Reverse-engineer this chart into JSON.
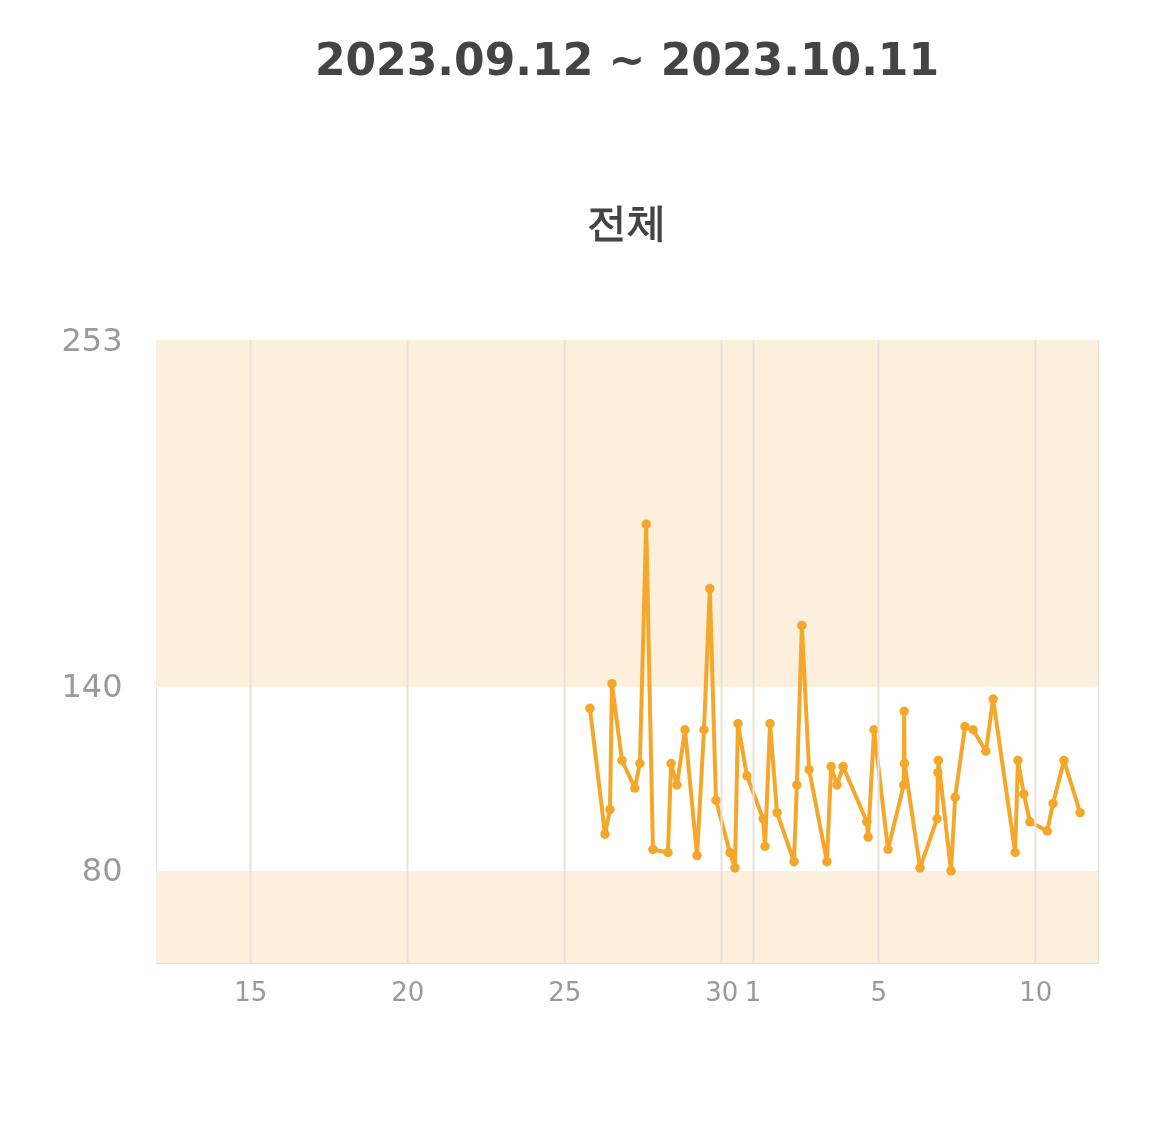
{
  "chart_data": {
    "type": "line",
    "title": "2023.09.12 ~ 2023.10.11",
    "subtitle": "전체",
    "x": [
      "2023-09-25T19:40",
      "2023-09-26T07:10",
      "2023-09-26T11:00",
      "2023-09-26T12:30",
      "2023-09-26T20:10",
      "2023-09-27T06:00",
      "2023-09-27T09:50",
      "2023-09-27T14:40",
      "2023-09-27T19:50",
      "2023-09-28T07:20",
      "2023-09-28T09:40",
      "2023-09-28T14:10",
      "2023-09-28T20:20",
      "2023-09-29T05:30",
      "2023-09-29T10:50",
      "2023-09-29T15:20",
      "2023-09-29T20:00",
      "2023-09-30T06:40",
      "2023-09-30T10:30",
      "2023-09-30T12:50",
      "2023-09-30T19:40",
      "2023-10-01T08:00",
      "2023-10-01T09:30",
      "2023-10-01T13:20",
      "2023-10-01T18:40",
      "2023-10-02T07:40",
      "2023-10-02T09:50",
      "2023-10-02T13:40",
      "2023-10-02T19:10",
      "2023-10-03T08:50",
      "2023-10-03T12:00",
      "2023-10-03T16:30",
      "2023-10-03T21:10",
      "2023-10-04T15:20",
      "2023-10-04T16:20",
      "2023-10-04T20:50",
      "2023-10-05T07:30",
      "2023-10-05T19:30",
      "2023-10-05T19:50",
      "2023-10-05T20:10",
      "2023-10-06T08:00",
      "2023-10-06T21:00",
      "2023-10-06T21:40",
      "2023-10-06T22:00",
      "2023-10-07T07:40",
      "2023-10-07T10:50",
      "2023-10-07T18:20",
      "2023-10-08T00:30",
      "2023-10-08T10:20",
      "2023-10-08T15:50",
      "2023-10-09T08:40",
      "2023-10-09T10:50",
      "2023-10-09T15:20",
      "2023-10-09T20:00",
      "2023-10-10T09:10",
      "2023-10-10T13:40",
      "2023-10-10T22:00",
      "2023-10-11T10:20"
    ],
    "series": [
      {
        "color": "#f4a72a",
        "values": [
          133,
          92,
          100,
          141,
          116,
          107,
          115,
          193,
          87,
          86,
          115,
          108,
          126,
          85,
          126,
          172,
          103,
          86,
          81,
          128,
          111,
          97,
          88,
          128,
          99,
          83,
          108,
          160,
          113,
          83,
          114,
          108,
          114,
          96,
          91,
          126,
          87,
          108,
          132,
          115,
          81,
          97,
          112,
          116,
          80,
          104,
          127,
          126,
          119,
          136,
          86,
          116,
          105,
          96,
          93,
          102,
          116,
          99
        ]
      }
    ],
    "xlim": [
      "2023-09-12",
      "2023-10-12"
    ],
    "xticks": [
      {
        "value": "2023-09-15",
        "label": "15"
      },
      {
        "value": "2023-09-20",
        "label": "20"
      },
      {
        "value": "2023-09-25",
        "label": "25"
      },
      {
        "value": "2023-09-30",
        "label": "30"
      },
      {
        "value": "2023-10-01",
        "label": "1"
      },
      {
        "value": "2023-10-05",
        "label": "5"
      },
      {
        "value": "2023-10-10",
        "label": "10"
      }
    ],
    "ylim": [
      50,
      253
    ],
    "yticks": [
      80,
      140,
      253
    ],
    "bands": [
      {
        "axis": "y",
        "from": 140,
        "to": 253,
        "color": "#fcf0dd"
      },
      {
        "axis": "y",
        "from": 50,
        "to": 80,
        "color": "#fcf0dd"
      }
    ],
    "grid": "x",
    "marker": "circle",
    "line_style": "solid"
  }
}
